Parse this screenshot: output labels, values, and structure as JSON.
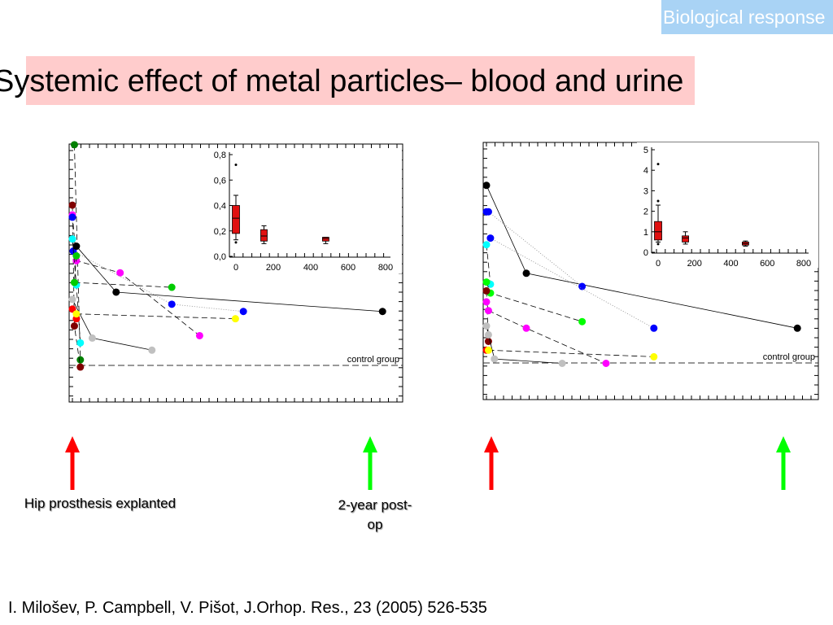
{
  "header": {
    "badge": "Biological response",
    "title": "Systemic effect of metal particles– blood and urine"
  },
  "captions": {
    "explant": "Hip prosthesis explanted",
    "postop_line1": "2-year post-",
    "postop_line2": "op"
  },
  "reference": "I. Milošev, P. Campbell, V. Pišot, J.Orhop. Res., 23 (2005) 526-535",
  "colors": {
    "explant_arrow": "#ff0000",
    "postop_arrow": "#00ff00",
    "box_fill": "#e01010"
  },
  "chart_data": [
    {
      "type": "line",
      "control_label": "control group",
      "x_range": [
        0,
        800
      ],
      "inset": {
        "type": "box",
        "y_ticks": [
          "0,0",
          "0,2",
          "0,4",
          "0,6",
          "0,8"
        ],
        "x_ticks": [
          "0",
          "200",
          "400",
          "600",
          "800"
        ],
        "y_range": [
          0,
          0.8
        ],
        "x_range": [
          0,
          800
        ],
        "boxes": [
          {
            "x": 0,
            "min": 0.13,
            "q1": 0.18,
            "median": 0.3,
            "q3": 0.4,
            "max": 0.48,
            "outliers": [
              0.72,
              0.11
            ]
          },
          {
            "x": 150,
            "min": 0.1,
            "q1": 0.12,
            "median": 0.16,
            "q3": 0.21,
            "max": 0.24
          },
          {
            "x": 480,
            "min": 0.1,
            "q1": 0.12,
            "median": 0.14,
            "q3": 0.15,
            "max": 0.15
          }
        ]
      },
      "series": [
        {
          "color": "#008000",
          "points": [
            [
              5,
              94
            ],
            [
              20,
              5
            ]
          ],
          "style": "dashed"
        },
        {
          "color": "#800000",
          "points": [
            [
              0,
              69
            ],
            [
              5,
              19
            ],
            [
              20,
              2
            ]
          ],
          "style": "dashed"
        },
        {
          "color": "#ff00ff",
          "points": [
            [
              0,
              65
            ],
            [
              10,
              46
            ],
            [
              120,
              41
            ],
            [
              320,
              15
            ]
          ],
          "style": "dashed"
        },
        {
          "color": "#0000ff",
          "points": [
            [
              0,
              64
            ],
            [
              2,
              50
            ],
            [
              250,
              28
            ],
            [
              430,
              25
            ]
          ],
          "style": "dotted"
        },
        {
          "color": "#00ffff",
          "points": [
            [
              0,
              55
            ],
            [
              10,
              36
            ],
            [
              20,
              12
            ]
          ],
          "style": "dashed"
        },
        {
          "color": "#000000",
          "points": [
            [
              10,
              52
            ],
            [
              110,
              33
            ],
            [
              780,
              25
            ]
          ],
          "style": "solid"
        },
        {
          "color": "#00cc00",
          "points": [
            [
              10,
              48
            ],
            [
              5,
              37
            ],
            [
              250,
              35
            ]
          ],
          "style": "dashed"
        },
        {
          "color": "#c0c0c0",
          "points": [
            [
              0,
              30
            ],
            [
              50,
              14
            ],
            [
              200,
              9
            ]
          ],
          "style": "solid"
        },
        {
          "color": "#ff0000",
          "points": [
            [
              0,
              26
            ],
            [
              10,
              22
            ]
          ],
          "style": "dashed"
        },
        {
          "color": "#ffff00",
          "points": [
            [
              10,
              24
            ],
            [
              410,
              22
            ]
          ],
          "style": "dashed"
        }
      ]
    },
    {
      "type": "line",
      "control_label": "control group",
      "x_range": [
        0,
        800
      ],
      "inset": {
        "type": "box",
        "y_ticks": [
          "0",
          "1",
          "2",
          "3",
          "4",
          "5"
        ],
        "x_ticks": [
          "0",
          "200",
          "400",
          "600",
          "800"
        ],
        "y_range": [
          0,
          5
        ],
        "x_range": [
          0,
          800
        ],
        "boxes": [
          {
            "x": 0,
            "min": 0.5,
            "q1": 0.6,
            "median": 1.0,
            "q3": 1.5,
            "max": 2.3,
            "outliers": [
              4.3,
              2.5,
              0.4
            ]
          },
          {
            "x": 150,
            "min": 0.4,
            "q1": 0.5,
            "median": 0.7,
            "q3": 0.8,
            "max": 1.0
          },
          {
            "x": 480,
            "min": 0.3,
            "q1": 0.35,
            "median": 0.42,
            "q3": 0.5,
            "max": 0.55
          }
        ]
      },
      "series": [
        {
          "color": "#000000",
          "points": [
            [
              0,
              86
            ],
            [
              100,
              46
            ],
            [
              780,
              21
            ]
          ],
          "style": "solid"
        },
        {
          "color": "#0000ff",
          "points": [
            [
              0,
              74
            ],
            [
              5,
              74
            ],
            [
              240,
              40
            ]
          ],
          "style": "dotted"
        },
        {
          "color": "#0000ff",
          "points": [
            [
              10,
              62
            ],
            [
              420,
              21
            ]
          ],
          "style": "dotted"
        },
        {
          "color": "#00ffff",
          "points": [
            [
              0,
              59
            ],
            [
              10,
              41
            ]
          ],
          "style": "dashed"
        },
        {
          "color": "#00ff00",
          "points": [
            [
              0,
              42
            ],
            [
              10,
              37
            ],
            [
              240,
              24
            ]
          ],
          "style": "dashed"
        },
        {
          "color": "#800000",
          "points": [
            [
              0,
              38
            ],
            [
              5,
              15
            ]
          ],
          "style": "dashed"
        },
        {
          "color": "#ff00ff",
          "points": [
            [
              0,
              33
            ],
            [
              5,
              29
            ],
            [
              100,
              21
            ],
            [
              300,
              5
            ]
          ],
          "style": "dashed"
        },
        {
          "color": "#c0c0c0",
          "points": [
            [
              0,
              22
            ],
            [
              5,
              18
            ],
            [
              20,
              7
            ],
            [
              190,
              5
            ]
          ],
          "style": "solid"
        },
        {
          "color": "#ff0000",
          "points": [
            [
              0,
              11
            ]
          ],
          "style": "none"
        },
        {
          "color": "#ffff00",
          "points": [
            [
              5,
              11
            ],
            [
              420,
              8
            ]
          ],
          "style": "dashed"
        }
      ]
    }
  ]
}
